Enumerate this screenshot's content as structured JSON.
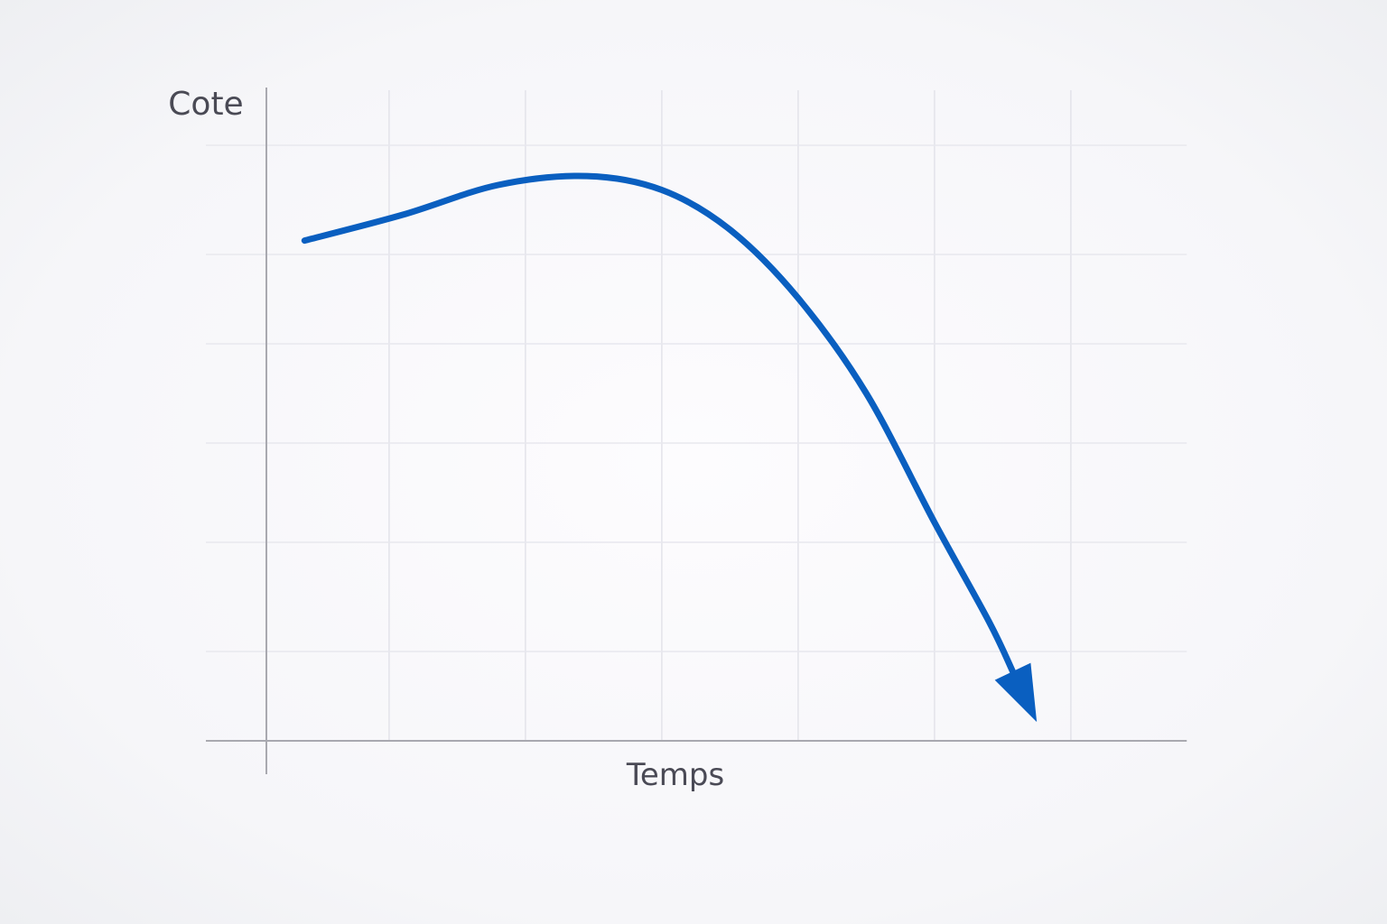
{
  "chart_data": {
    "type": "line",
    "title": "",
    "xlabel": "Temps",
    "ylabel": "Cote",
    "xlim": [
      0,
      6.75
    ],
    "ylim": [
      0,
      6.6
    ],
    "grid": true,
    "x_gridlines": [
      0.9,
      1.9,
      2.9,
      3.9,
      4.9,
      5.9
    ],
    "y_gridlines": [
      0.9,
      2.0,
      3.0,
      4.0,
      4.9,
      6.0
    ],
    "series": [
      {
        "color": "#0a5fc0",
        "end_marker": "arrow",
        "x": [
          0.28,
          1.0,
          1.7,
          2.35,
          2.9,
          3.4,
          3.9,
          4.4,
          4.9,
          5.3,
          5.65
        ],
        "y": [
          5.04,
          5.3,
          5.6,
          5.69,
          5.55,
          5.15,
          4.46,
          3.5,
          2.2,
          1.2,
          0.19
        ]
      }
    ]
  }
}
